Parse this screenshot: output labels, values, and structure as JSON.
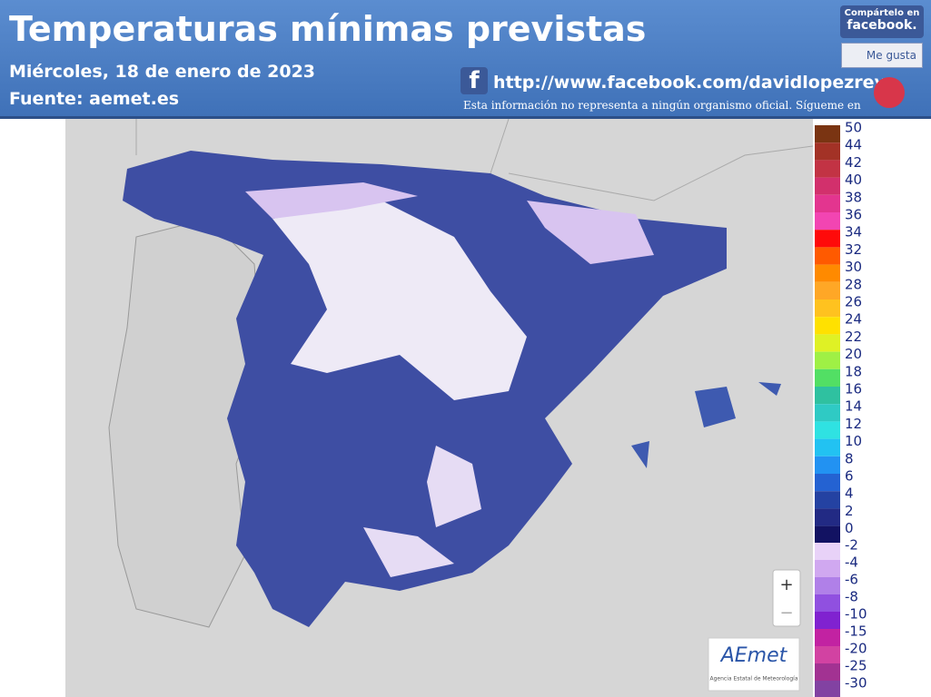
{
  "header": {
    "title": "Temperaturas mínimas previstas",
    "date": "Miércoles, 18 de enero de 2023",
    "source": "Fuente: aemet.es",
    "url": "http://www.facebook.com/davidlopezrey",
    "disclaimer": "Esta información no representa a ningún organismo oficial. Sígueme en",
    "share_top": "Compártelo en",
    "share_brand": "facebook.",
    "like": "Me gusta"
  },
  "zoom": {
    "in": "+",
    "out": "−"
  },
  "logo": {
    "name": "AEmet",
    "subtitle": "Agencia Estatal de Meteorología"
  },
  "legend": {
    "positive": [
      {
        "value": 50,
        "color": "#7a3412"
      },
      {
        "value": 44,
        "color": "#a33226"
      },
      {
        "value": 42,
        "color": "#c23344"
      },
      {
        "value": 40,
        "color": "#d2306c"
      },
      {
        "value": 38,
        "color": "#e3358f"
      },
      {
        "value": 36,
        "color": "#f245b2"
      },
      {
        "value": 34,
        "color": "#ff0a0a"
      },
      {
        "value": 32,
        "color": "#ff5a00"
      },
      {
        "value": 30,
        "color": "#ff8a00"
      },
      {
        "value": 28,
        "color": "#ffa726"
      },
      {
        "value": 26,
        "color": "#ffc21f"
      },
      {
        "value": 24,
        "color": "#ffe100"
      },
      {
        "value": 22,
        "color": "#dff125"
      },
      {
        "value": 20,
        "color": "#9ff045"
      },
      {
        "value": 18,
        "color": "#52df64"
      },
      {
        "value": 16,
        "color": "#2fc1a0"
      },
      {
        "value": 14,
        "color": "#2fcac4"
      },
      {
        "value": 12,
        "color": "#2fe2e2"
      },
      {
        "value": 10,
        "color": "#22c2f2"
      },
      {
        "value": 8,
        "color": "#2292f2"
      },
      {
        "value": 6,
        "color": "#2462d2"
      },
      {
        "value": 4,
        "color": "#2442a2"
      },
      {
        "value": 2,
        "color": "#222a84"
      },
      {
        "value": 0,
        "color": "#121262"
      }
    ],
    "negative": [
      {
        "value": -2,
        "color": "#e8d2f8"
      },
      {
        "value": -4,
        "color": "#d0a8f0"
      },
      {
        "value": -6,
        "color": "#b080e8"
      },
      {
        "value": -8,
        "color": "#9050e0"
      },
      {
        "value": -10,
        "color": "#8022d0"
      },
      {
        "value": -15,
        "color": "#c222a2"
      },
      {
        "value": -20,
        "color": "#d242a2"
      },
      {
        "value": -25,
        "color": "#a23292"
      },
      {
        "value": -30,
        "color": "#8242a2"
      }
    ]
  }
}
